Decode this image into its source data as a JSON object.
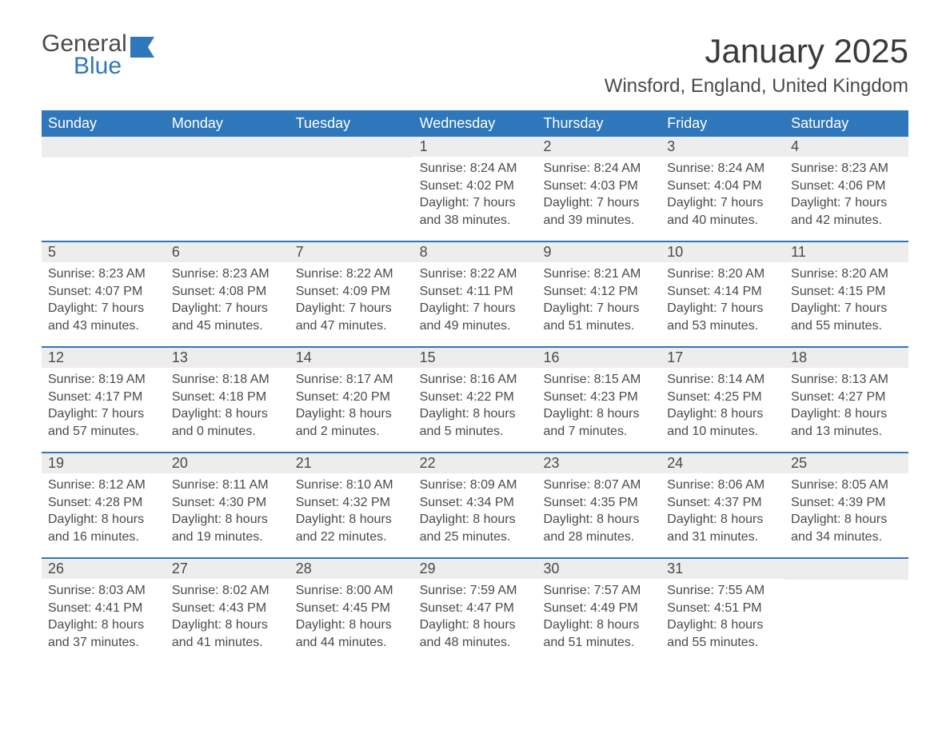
{
  "logo": {
    "word1": "General",
    "word2": "Blue"
  },
  "title": "January 2025",
  "location": "Winsford, England, United Kingdom",
  "colors": {
    "accent": "#2f77bb",
    "header_text": "#ffffff",
    "day_num_bg": "#ededed",
    "text": "#4a4a4a",
    "background": "#ffffff"
  },
  "day_names": [
    "Sunday",
    "Monday",
    "Tuesday",
    "Wednesday",
    "Thursday",
    "Friday",
    "Saturday"
  ],
  "weeks": [
    [
      null,
      null,
      null,
      {
        "n": "1",
        "sunrise": "8:24 AM",
        "sunset": "4:02 PM",
        "daylight": "7 hours and 38 minutes."
      },
      {
        "n": "2",
        "sunrise": "8:24 AM",
        "sunset": "4:03 PM",
        "daylight": "7 hours and 39 minutes."
      },
      {
        "n": "3",
        "sunrise": "8:24 AM",
        "sunset": "4:04 PM",
        "daylight": "7 hours and 40 minutes."
      },
      {
        "n": "4",
        "sunrise": "8:23 AM",
        "sunset": "4:06 PM",
        "daylight": "7 hours and 42 minutes."
      }
    ],
    [
      {
        "n": "5",
        "sunrise": "8:23 AM",
        "sunset": "4:07 PM",
        "daylight": "7 hours and 43 minutes."
      },
      {
        "n": "6",
        "sunrise": "8:23 AM",
        "sunset": "4:08 PM",
        "daylight": "7 hours and 45 minutes."
      },
      {
        "n": "7",
        "sunrise": "8:22 AM",
        "sunset": "4:09 PM",
        "daylight": "7 hours and 47 minutes."
      },
      {
        "n": "8",
        "sunrise": "8:22 AM",
        "sunset": "4:11 PM",
        "daylight": "7 hours and 49 minutes."
      },
      {
        "n": "9",
        "sunrise": "8:21 AM",
        "sunset": "4:12 PM",
        "daylight": "7 hours and 51 minutes."
      },
      {
        "n": "10",
        "sunrise": "8:20 AM",
        "sunset": "4:14 PM",
        "daylight": "7 hours and 53 minutes."
      },
      {
        "n": "11",
        "sunrise": "8:20 AM",
        "sunset": "4:15 PM",
        "daylight": "7 hours and 55 minutes."
      }
    ],
    [
      {
        "n": "12",
        "sunrise": "8:19 AM",
        "sunset": "4:17 PM",
        "daylight": "7 hours and 57 minutes."
      },
      {
        "n": "13",
        "sunrise": "8:18 AM",
        "sunset": "4:18 PM",
        "daylight": "8 hours and 0 minutes."
      },
      {
        "n": "14",
        "sunrise": "8:17 AM",
        "sunset": "4:20 PM",
        "daylight": "8 hours and 2 minutes."
      },
      {
        "n": "15",
        "sunrise": "8:16 AM",
        "sunset": "4:22 PM",
        "daylight": "8 hours and 5 minutes."
      },
      {
        "n": "16",
        "sunrise": "8:15 AM",
        "sunset": "4:23 PM",
        "daylight": "8 hours and 7 minutes."
      },
      {
        "n": "17",
        "sunrise": "8:14 AM",
        "sunset": "4:25 PM",
        "daylight": "8 hours and 10 minutes."
      },
      {
        "n": "18",
        "sunrise": "8:13 AM",
        "sunset": "4:27 PM",
        "daylight": "8 hours and 13 minutes."
      }
    ],
    [
      {
        "n": "19",
        "sunrise": "8:12 AM",
        "sunset": "4:28 PM",
        "daylight": "8 hours and 16 minutes."
      },
      {
        "n": "20",
        "sunrise": "8:11 AM",
        "sunset": "4:30 PM",
        "daylight": "8 hours and 19 minutes."
      },
      {
        "n": "21",
        "sunrise": "8:10 AM",
        "sunset": "4:32 PM",
        "daylight": "8 hours and 22 minutes."
      },
      {
        "n": "22",
        "sunrise": "8:09 AM",
        "sunset": "4:34 PM",
        "daylight": "8 hours and 25 minutes."
      },
      {
        "n": "23",
        "sunrise": "8:07 AM",
        "sunset": "4:35 PM",
        "daylight": "8 hours and 28 minutes."
      },
      {
        "n": "24",
        "sunrise": "8:06 AM",
        "sunset": "4:37 PM",
        "daylight": "8 hours and 31 minutes."
      },
      {
        "n": "25",
        "sunrise": "8:05 AM",
        "sunset": "4:39 PM",
        "daylight": "8 hours and 34 minutes."
      }
    ],
    [
      {
        "n": "26",
        "sunrise": "8:03 AM",
        "sunset": "4:41 PM",
        "daylight": "8 hours and 37 minutes."
      },
      {
        "n": "27",
        "sunrise": "8:02 AM",
        "sunset": "4:43 PM",
        "daylight": "8 hours and 41 minutes."
      },
      {
        "n": "28",
        "sunrise": "8:00 AM",
        "sunset": "4:45 PM",
        "daylight": "8 hours and 44 minutes."
      },
      {
        "n": "29",
        "sunrise": "7:59 AM",
        "sunset": "4:47 PM",
        "daylight": "8 hours and 48 minutes."
      },
      {
        "n": "30",
        "sunrise": "7:57 AM",
        "sunset": "4:49 PM",
        "daylight": "8 hours and 51 minutes."
      },
      {
        "n": "31",
        "sunrise": "7:55 AM",
        "sunset": "4:51 PM",
        "daylight": "8 hours and 55 minutes."
      },
      null
    ]
  ],
  "labels": {
    "sunrise": "Sunrise:",
    "sunset": "Sunset:",
    "daylight": "Daylight:"
  }
}
